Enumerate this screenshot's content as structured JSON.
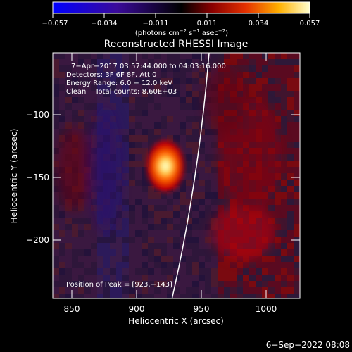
{
  "colorbar": {
    "tick_labels": [
      "−0.057",
      "−0.034",
      "−0.011",
      "0.011",
      "0.034",
      "0.057"
    ],
    "unit_prefix": "(photons cm",
    "unit_sup1": "−2",
    "unit_mid1": " s",
    "unit_sup2": "−1",
    "unit_mid2": " asec",
    "unit_sup3": "−2",
    "unit_suffix": ")"
  },
  "image": {
    "title": "Reconstructed RHESSI Image",
    "x_axis_label": "Heliocentric X (arcsec)",
    "y_axis_label": "Heliocentric Y (arcsec)",
    "x_ticks": [
      "850",
      "900",
      "950",
      "1000"
    ],
    "y_ticks": [
      "−100",
      "−150",
      "−200"
    ],
    "annotations": {
      "time_range": "7−Apr−2017 03:57:44.000 to 04:03:16.000",
      "detectors": "Detectors: 3F 6F 8F, Att 0",
      "energy": "Energy Range: 6.0 − 12.0 keV",
      "clean": "Clean    Total counts: 8.60E+03",
      "peak": "Position of Peak = [923,−143]"
    }
  },
  "footer": {
    "timestamp": "6−Sep−2022 08:08"
  }
}
